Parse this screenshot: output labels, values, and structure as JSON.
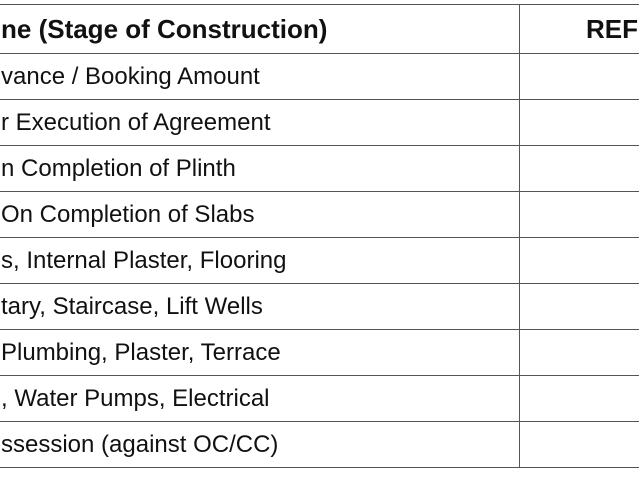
{
  "table": {
    "header": [
      "ne (Stage of Construction)",
      "REF"
    ],
    "rows": [
      [
        "vance / Booking Amount"
      ],
      [
        "r Execution of Agreement"
      ],
      [
        "n Completion of Plinth"
      ],
      [
        "On Completion of Slabs"
      ],
      [
        "s, Internal Plaster, Flooring"
      ],
      [
        "tary, Staircase, Lift Wells"
      ],
      [
        "Plumbing, Plaster, Terrace"
      ],
      [
        ", Water Pumps, Electrical"
      ],
      [
        "ssession (against OC/CC)"
      ]
    ]
  }
}
